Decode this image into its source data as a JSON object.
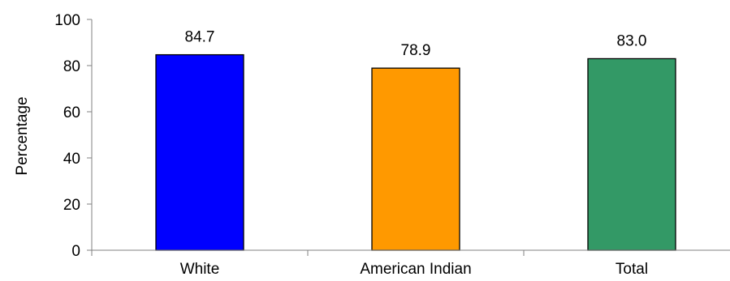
{
  "chart_data": {
    "type": "bar",
    "categories": [
      "White",
      "American Indian",
      "Total"
    ],
    "values": [
      84.7,
      78.9,
      83.0
    ],
    "value_labels": [
      "84.7",
      "78.9",
      "83.0"
    ],
    "bar_colors": [
      "#0000ff",
      "#ff9900",
      "#339966"
    ],
    "ylabel": "Percentage",
    "ylim": [
      0,
      100
    ],
    "yticks": [
      0,
      20,
      40,
      60,
      80,
      100
    ],
    "ytick_labels": [
      "0",
      "20",
      "40",
      "60",
      "80",
      "100"
    ],
    "grid": false,
    "legend": "none"
  }
}
